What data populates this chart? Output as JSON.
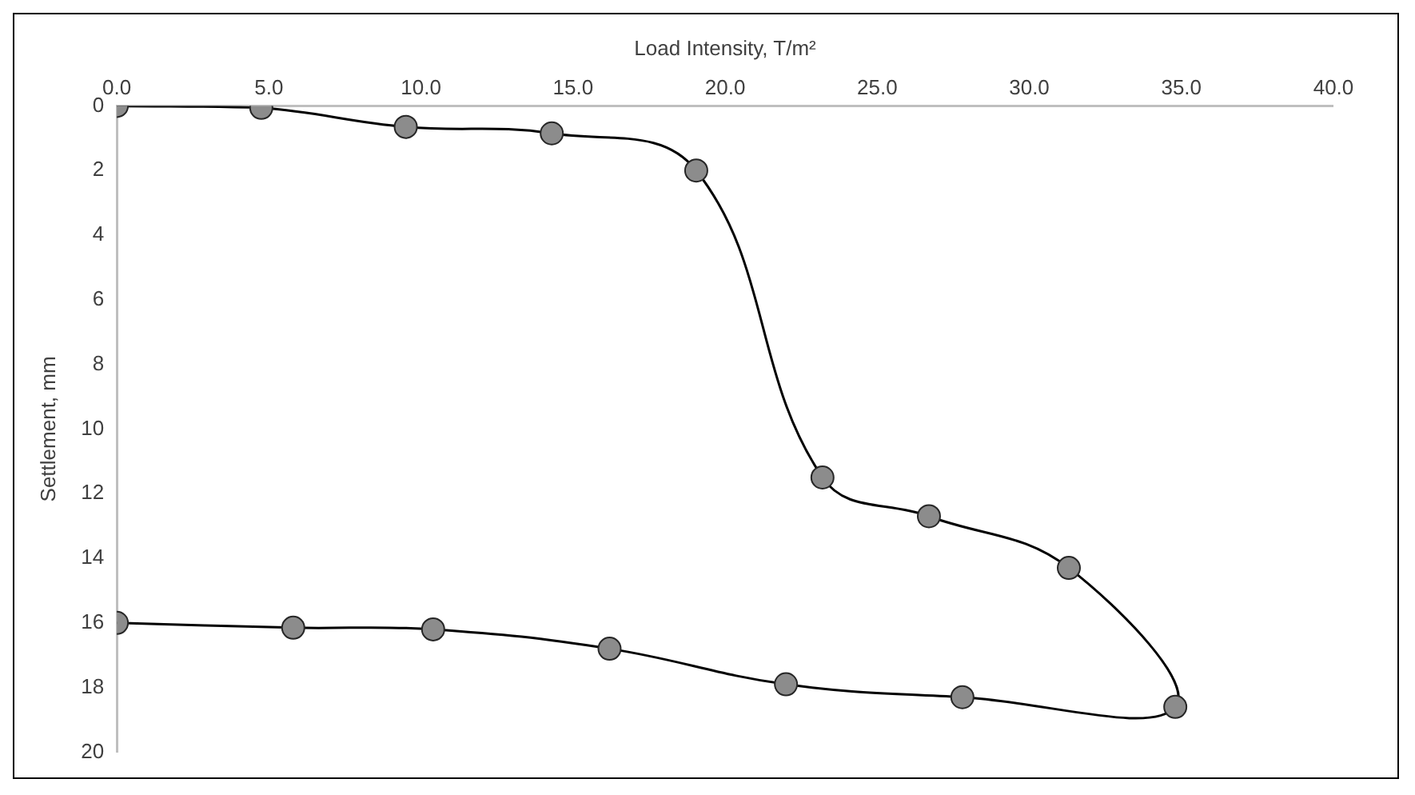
{
  "chart_data": {
    "type": "line",
    "xlabel": "Load Intensity, T/m²",
    "ylabel": "Settlement, mm",
    "x": [
      0,
      4.75,
      9.5,
      14.3,
      19.05,
      23.2,
      26.7,
      31.3,
      34.8,
      27.8,
      22.0,
      16.2,
      10.4,
      5.8,
      0
    ],
    "series": [
      {
        "color": "#000000",
        "values": [
          0,
          0.06,
          0.65,
          0.85,
          2.0,
          11.5,
          12.7,
          14.3,
          18.6,
          18.3,
          17.9,
          16.8,
          16.2,
          16.15,
          16.0
        ]
      }
    ],
    "xlim": [
      0,
      40
    ],
    "xticks": [
      {
        "value": 0,
        "label": "0.0"
      },
      {
        "value": 5,
        "label": "5.0"
      },
      {
        "value": 10,
        "label": "10.0"
      },
      {
        "value": 15,
        "label": "15.0"
      },
      {
        "value": 20,
        "label": "20.0"
      },
      {
        "value": 25,
        "label": "25.0"
      },
      {
        "value": 30,
        "label": "30.0"
      },
      {
        "value": 35,
        "label": "35.0"
      },
      {
        "value": 40,
        "label": "40.0"
      }
    ],
    "ylim": [
      20,
      0
    ],
    "yticks": [
      0,
      2,
      4,
      6,
      8,
      10,
      12,
      14,
      16,
      18,
      20
    ],
    "grid": false,
    "legend": false,
    "marker": "circle",
    "line_style": "solid"
  }
}
